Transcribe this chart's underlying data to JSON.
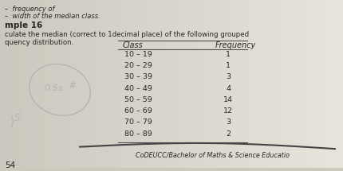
{
  "bg_color_left": "#ccc8be",
  "bg_color_right": "#dedad2",
  "top_text1": "–  frequency of",
  "top_text2": "–  width of the median class.",
  "example_label": "mple 16",
  "instruction1": "culate the median (correct to 1decimal place) of the following grouped",
  "instruction2": "quency distribution.",
  "col_class": "Class",
  "col_freq": "Frequency",
  "classes": [
    "10 – 19",
    "20 – 29",
    "30 – 39",
    "40 – 49",
    "50 – 59",
    "60 – 69",
    "70 – 79",
    "80 – 89"
  ],
  "frequencies": [
    "1",
    "1",
    "3",
    "4",
    "14",
    "12",
    "3",
    "2"
  ],
  "footer": "CoDEUCC/Bachelor of Maths & Science Educatio",
  "page_num": "54",
  "text_color": "#2a2520",
  "line_color": "#555050",
  "handwriting_color": "#aaaaaa"
}
